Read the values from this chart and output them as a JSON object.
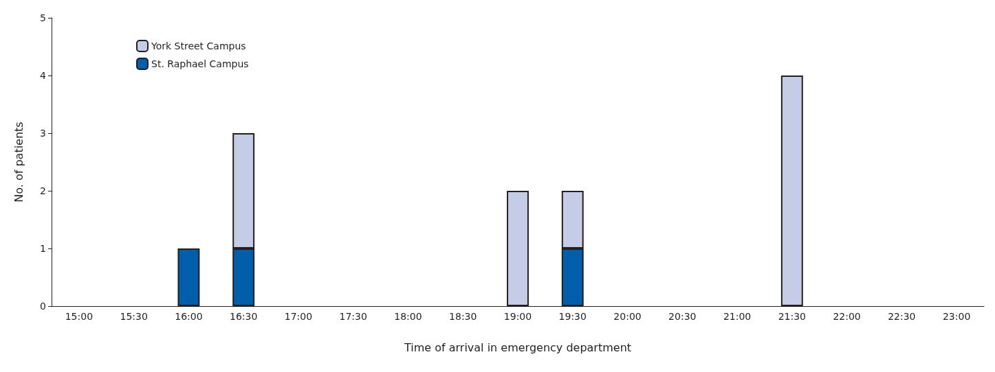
{
  "chart_data": {
    "type": "bar",
    "stacked": true,
    "xlabel": "Time of arrival in emergency department",
    "ylabel": "No. of patients",
    "categories": [
      "15:00",
      "15:30",
      "16:00",
      "16:30",
      "17:00",
      "17:30",
      "18:00",
      "18:30",
      "19:00",
      "19:30",
      "20:00",
      "20:30",
      "21:00",
      "21:30",
      "22:00",
      "22:30",
      "23:00"
    ],
    "series": [
      {
        "name": "St. Raphael Campus",
        "color": "#005eaa",
        "values": [
          null,
          null,
          1,
          1,
          null,
          null,
          null,
          null,
          null,
          1,
          null,
          null,
          null,
          null,
          null,
          null,
          null
        ]
      },
      {
        "name": "York Street Campus",
        "color": "#c5cce6",
        "values": [
          null,
          null,
          null,
          2,
          null,
          null,
          null,
          null,
          2,
          1,
          null,
          null,
          null,
          4,
          null,
          null,
          null
        ]
      }
    ],
    "ylim": [
      0,
      5
    ],
    "yticks": [
      0,
      1,
      2,
      3,
      4,
      5
    ],
    "grid": false,
    "legend": "top left"
  }
}
